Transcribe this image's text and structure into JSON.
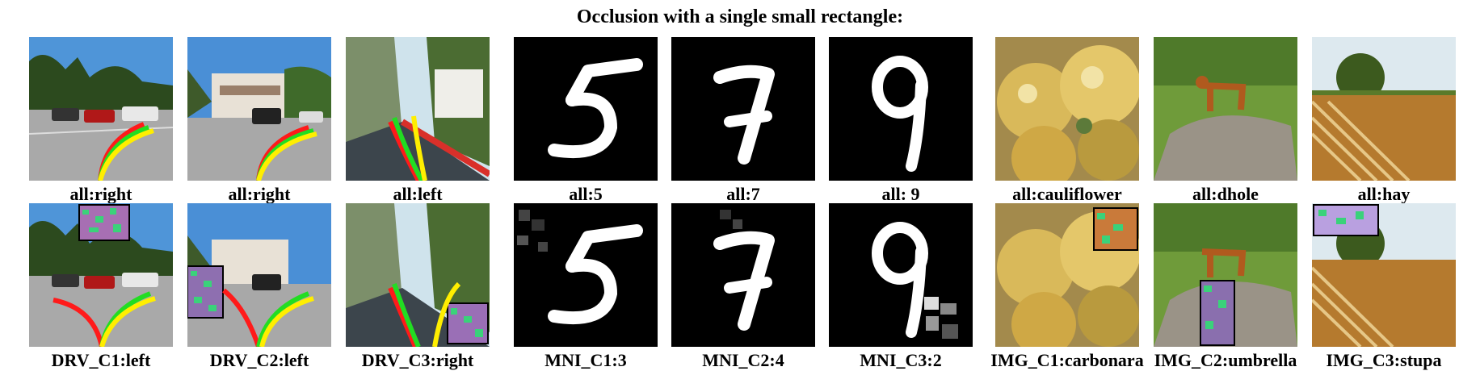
{
  "title": "Occlusion with a single small rectangle:",
  "columns": [
    {
      "kind": "driving",
      "variant": 1,
      "top_caption": "all:right",
      "bottom_caption": "DRV_C1:left"
    },
    {
      "kind": "driving",
      "variant": 2,
      "top_caption": "all:right",
      "bottom_caption": "DRV_C2:left"
    },
    {
      "kind": "driving",
      "variant": 3,
      "top_caption": "all:left",
      "bottom_caption": "DRV_C3:right"
    },
    {
      "kind": "digit",
      "digit": "5",
      "top_caption": "all:5",
      "bottom_caption": "MNI_C1:3"
    },
    {
      "kind": "digit",
      "digit": "7",
      "top_caption": "all:7",
      "bottom_caption": "MNI_C2:4"
    },
    {
      "kind": "digit",
      "digit": "9",
      "top_caption": "all: 9",
      "bottom_caption": "MNI_C3:2"
    },
    {
      "kind": "photo",
      "subject": "cauliflower",
      "top_caption": "all:cauliflower",
      "bottom_caption": "IMG_C1:carbonara"
    },
    {
      "kind": "photo",
      "subject": "dhole",
      "top_caption": "all:dhole",
      "bottom_caption": "IMG_C2:umbrella"
    },
    {
      "kind": "photo",
      "subject": "hay",
      "top_caption": "all:hay",
      "bottom_caption": "IMG_C3:stupa"
    }
  ],
  "colors": {
    "arrow_red": "#ff1a1a",
    "arrow_green": "#22dd22",
    "arrow_yellow": "#ffee00",
    "digit_bg": "#000000"
  }
}
